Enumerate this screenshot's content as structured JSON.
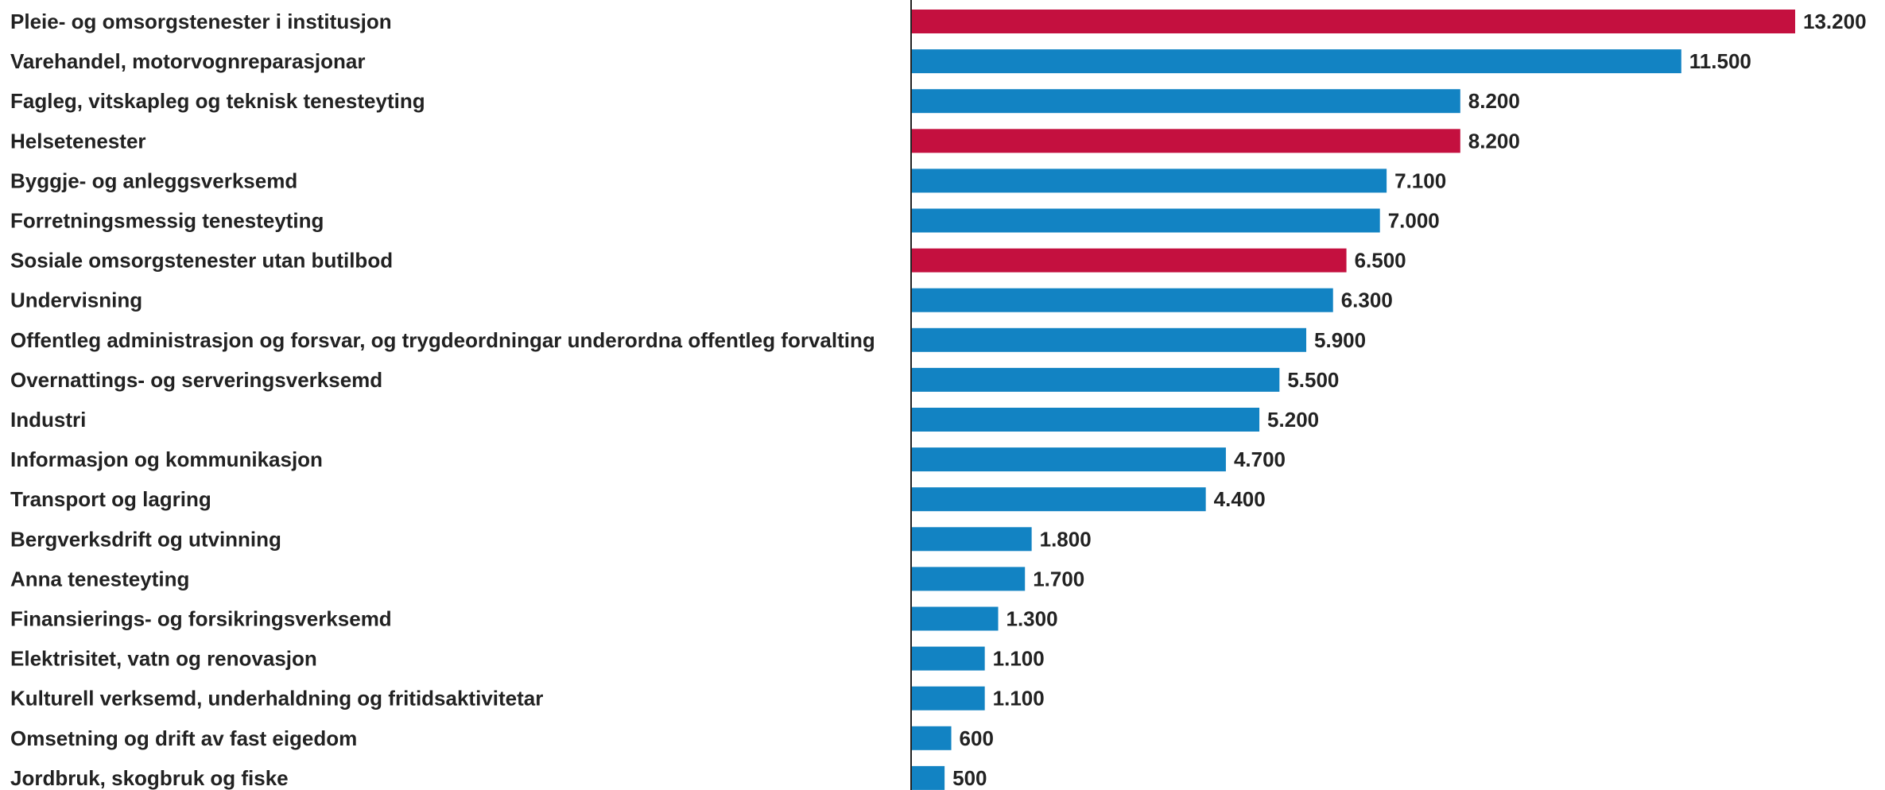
{
  "chart_data": {
    "type": "bar",
    "orientation": "horizontal",
    "title": "",
    "xlabel": "",
    "ylabel": "",
    "grid": false,
    "xlim": [
      0,
      13200
    ],
    "colors": {
      "blue": "#1283c3",
      "red": "#c4103f"
    },
    "categories": [
      "Pleie- og omsorgstenester i institusjon",
      "Varehandel, motorvognreparasjonar",
      "Fagleg, vitskapleg og teknisk tenesteyting",
      "Helsetenester",
      "Byggje- og anleggsverksemd",
      "Forretningsmessig tenesteyting",
      "Sosiale omsorgstenester utan butilbod",
      "Undervisning",
      "Offentleg administrasjon og forsvar, og trygdeordningar underordna offentleg forvalting",
      "Overnattings- og serveringsverksemd",
      "Industri",
      "Informasjon og kommunikasjon",
      "Transport og lagring",
      "Bergverksdrift og utvinning",
      "Anna tenesteyting",
      "Finansierings- og forsikringsverksemd",
      "Elektrisitet, vatn og renovasjon",
      "Kulturell verksemd, underhaldning og fritidsaktivitetar",
      "Omsetning og drift av fast eigedom",
      "Jordbruk, skogbruk og fiske"
    ],
    "values": [
      13200,
      11500,
      8200,
      8200,
      7100,
      7000,
      6500,
      6300,
      5900,
      5500,
      5200,
      4700,
      4400,
      1800,
      1700,
      1300,
      1100,
      1100,
      600,
      500
    ],
    "value_labels": [
      "13.200",
      "11.500",
      "8.200",
      "8.200",
      "7.100",
      "7.000",
      "6.500",
      "6.300",
      "5.900",
      "5.500",
      "5.200",
      "4.700",
      "4.400",
      "1.800",
      "1.700",
      "1.300",
      "1.100",
      "1.100",
      "600",
      "500"
    ],
    "highlight": [
      true,
      false,
      false,
      true,
      false,
      false,
      true,
      false,
      false,
      false,
      false,
      false,
      false,
      false,
      false,
      false,
      false,
      false,
      false,
      false
    ]
  }
}
